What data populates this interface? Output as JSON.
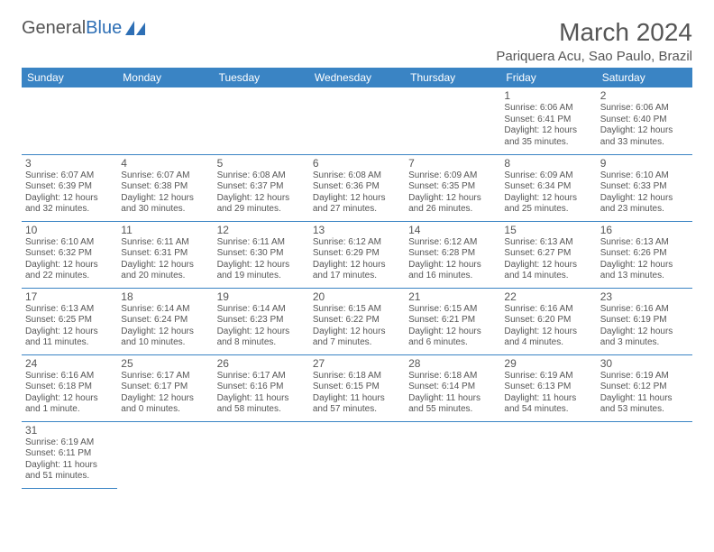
{
  "logo": {
    "brand_left": "General",
    "brand_right": "Blue"
  },
  "title": "March 2024",
  "location": "Pariquera Acu, Sao Paulo, Brazil",
  "headers": [
    "Sunday",
    "Monday",
    "Tuesday",
    "Wednesday",
    "Thursday",
    "Friday",
    "Saturday"
  ],
  "colors": {
    "header_bg": "#3a84c4",
    "text": "#555555",
    "accent": "#2e6fb5"
  },
  "typography": {
    "title_fontsize": 28,
    "header_fontsize": 12,
    "body_fontsize": 10
  },
  "layout": {
    "cols": 7,
    "rows": 6,
    "first_day_index": 5
  },
  "days": [
    {
      "n": "1",
      "sr": "6:06 AM",
      "ss": "6:41 PM",
      "dl": "12 hours and 35 minutes."
    },
    {
      "n": "2",
      "sr": "6:06 AM",
      "ss": "6:40 PM",
      "dl": "12 hours and 33 minutes."
    },
    {
      "n": "3",
      "sr": "6:07 AM",
      "ss": "6:39 PM",
      "dl": "12 hours and 32 minutes."
    },
    {
      "n": "4",
      "sr": "6:07 AM",
      "ss": "6:38 PM",
      "dl": "12 hours and 30 minutes."
    },
    {
      "n": "5",
      "sr": "6:08 AM",
      "ss": "6:37 PM",
      "dl": "12 hours and 29 minutes."
    },
    {
      "n": "6",
      "sr": "6:08 AM",
      "ss": "6:36 PM",
      "dl": "12 hours and 27 minutes."
    },
    {
      "n": "7",
      "sr": "6:09 AM",
      "ss": "6:35 PM",
      "dl": "12 hours and 26 minutes."
    },
    {
      "n": "8",
      "sr": "6:09 AM",
      "ss": "6:34 PM",
      "dl": "12 hours and 25 minutes."
    },
    {
      "n": "9",
      "sr": "6:10 AM",
      "ss": "6:33 PM",
      "dl": "12 hours and 23 minutes."
    },
    {
      "n": "10",
      "sr": "6:10 AM",
      "ss": "6:32 PM",
      "dl": "12 hours and 22 minutes."
    },
    {
      "n": "11",
      "sr": "6:11 AM",
      "ss": "6:31 PM",
      "dl": "12 hours and 20 minutes."
    },
    {
      "n": "12",
      "sr": "6:11 AM",
      "ss": "6:30 PM",
      "dl": "12 hours and 19 minutes."
    },
    {
      "n": "13",
      "sr": "6:12 AM",
      "ss": "6:29 PM",
      "dl": "12 hours and 17 minutes."
    },
    {
      "n": "14",
      "sr": "6:12 AM",
      "ss": "6:28 PM",
      "dl": "12 hours and 16 minutes."
    },
    {
      "n": "15",
      "sr": "6:13 AM",
      "ss": "6:27 PM",
      "dl": "12 hours and 14 minutes."
    },
    {
      "n": "16",
      "sr": "6:13 AM",
      "ss": "6:26 PM",
      "dl": "12 hours and 13 minutes."
    },
    {
      "n": "17",
      "sr": "6:13 AM",
      "ss": "6:25 PM",
      "dl": "12 hours and 11 minutes."
    },
    {
      "n": "18",
      "sr": "6:14 AM",
      "ss": "6:24 PM",
      "dl": "12 hours and 10 minutes."
    },
    {
      "n": "19",
      "sr": "6:14 AM",
      "ss": "6:23 PM",
      "dl": "12 hours and 8 minutes."
    },
    {
      "n": "20",
      "sr": "6:15 AM",
      "ss": "6:22 PM",
      "dl": "12 hours and 7 minutes."
    },
    {
      "n": "21",
      "sr": "6:15 AM",
      "ss": "6:21 PM",
      "dl": "12 hours and 6 minutes."
    },
    {
      "n": "22",
      "sr": "6:16 AM",
      "ss": "6:20 PM",
      "dl": "12 hours and 4 minutes."
    },
    {
      "n": "23",
      "sr": "6:16 AM",
      "ss": "6:19 PM",
      "dl": "12 hours and 3 minutes."
    },
    {
      "n": "24",
      "sr": "6:16 AM",
      "ss": "6:18 PM",
      "dl": "12 hours and 1 minute."
    },
    {
      "n": "25",
      "sr": "6:17 AM",
      "ss": "6:17 PM",
      "dl": "12 hours and 0 minutes."
    },
    {
      "n": "26",
      "sr": "6:17 AM",
      "ss": "6:16 PM",
      "dl": "11 hours and 58 minutes."
    },
    {
      "n": "27",
      "sr": "6:18 AM",
      "ss": "6:15 PM",
      "dl": "11 hours and 57 minutes."
    },
    {
      "n": "28",
      "sr": "6:18 AM",
      "ss": "6:14 PM",
      "dl": "11 hours and 55 minutes."
    },
    {
      "n": "29",
      "sr": "6:19 AM",
      "ss": "6:13 PM",
      "dl": "11 hours and 54 minutes."
    },
    {
      "n": "30",
      "sr": "6:19 AM",
      "ss": "6:12 PM",
      "dl": "11 hours and 53 minutes."
    },
    {
      "n": "31",
      "sr": "6:19 AM",
      "ss": "6:11 PM",
      "dl": "11 hours and 51 minutes."
    }
  ],
  "labels": {
    "sunrise": "Sunrise: ",
    "sunset": "Sunset: ",
    "daylight": "Daylight: "
  }
}
